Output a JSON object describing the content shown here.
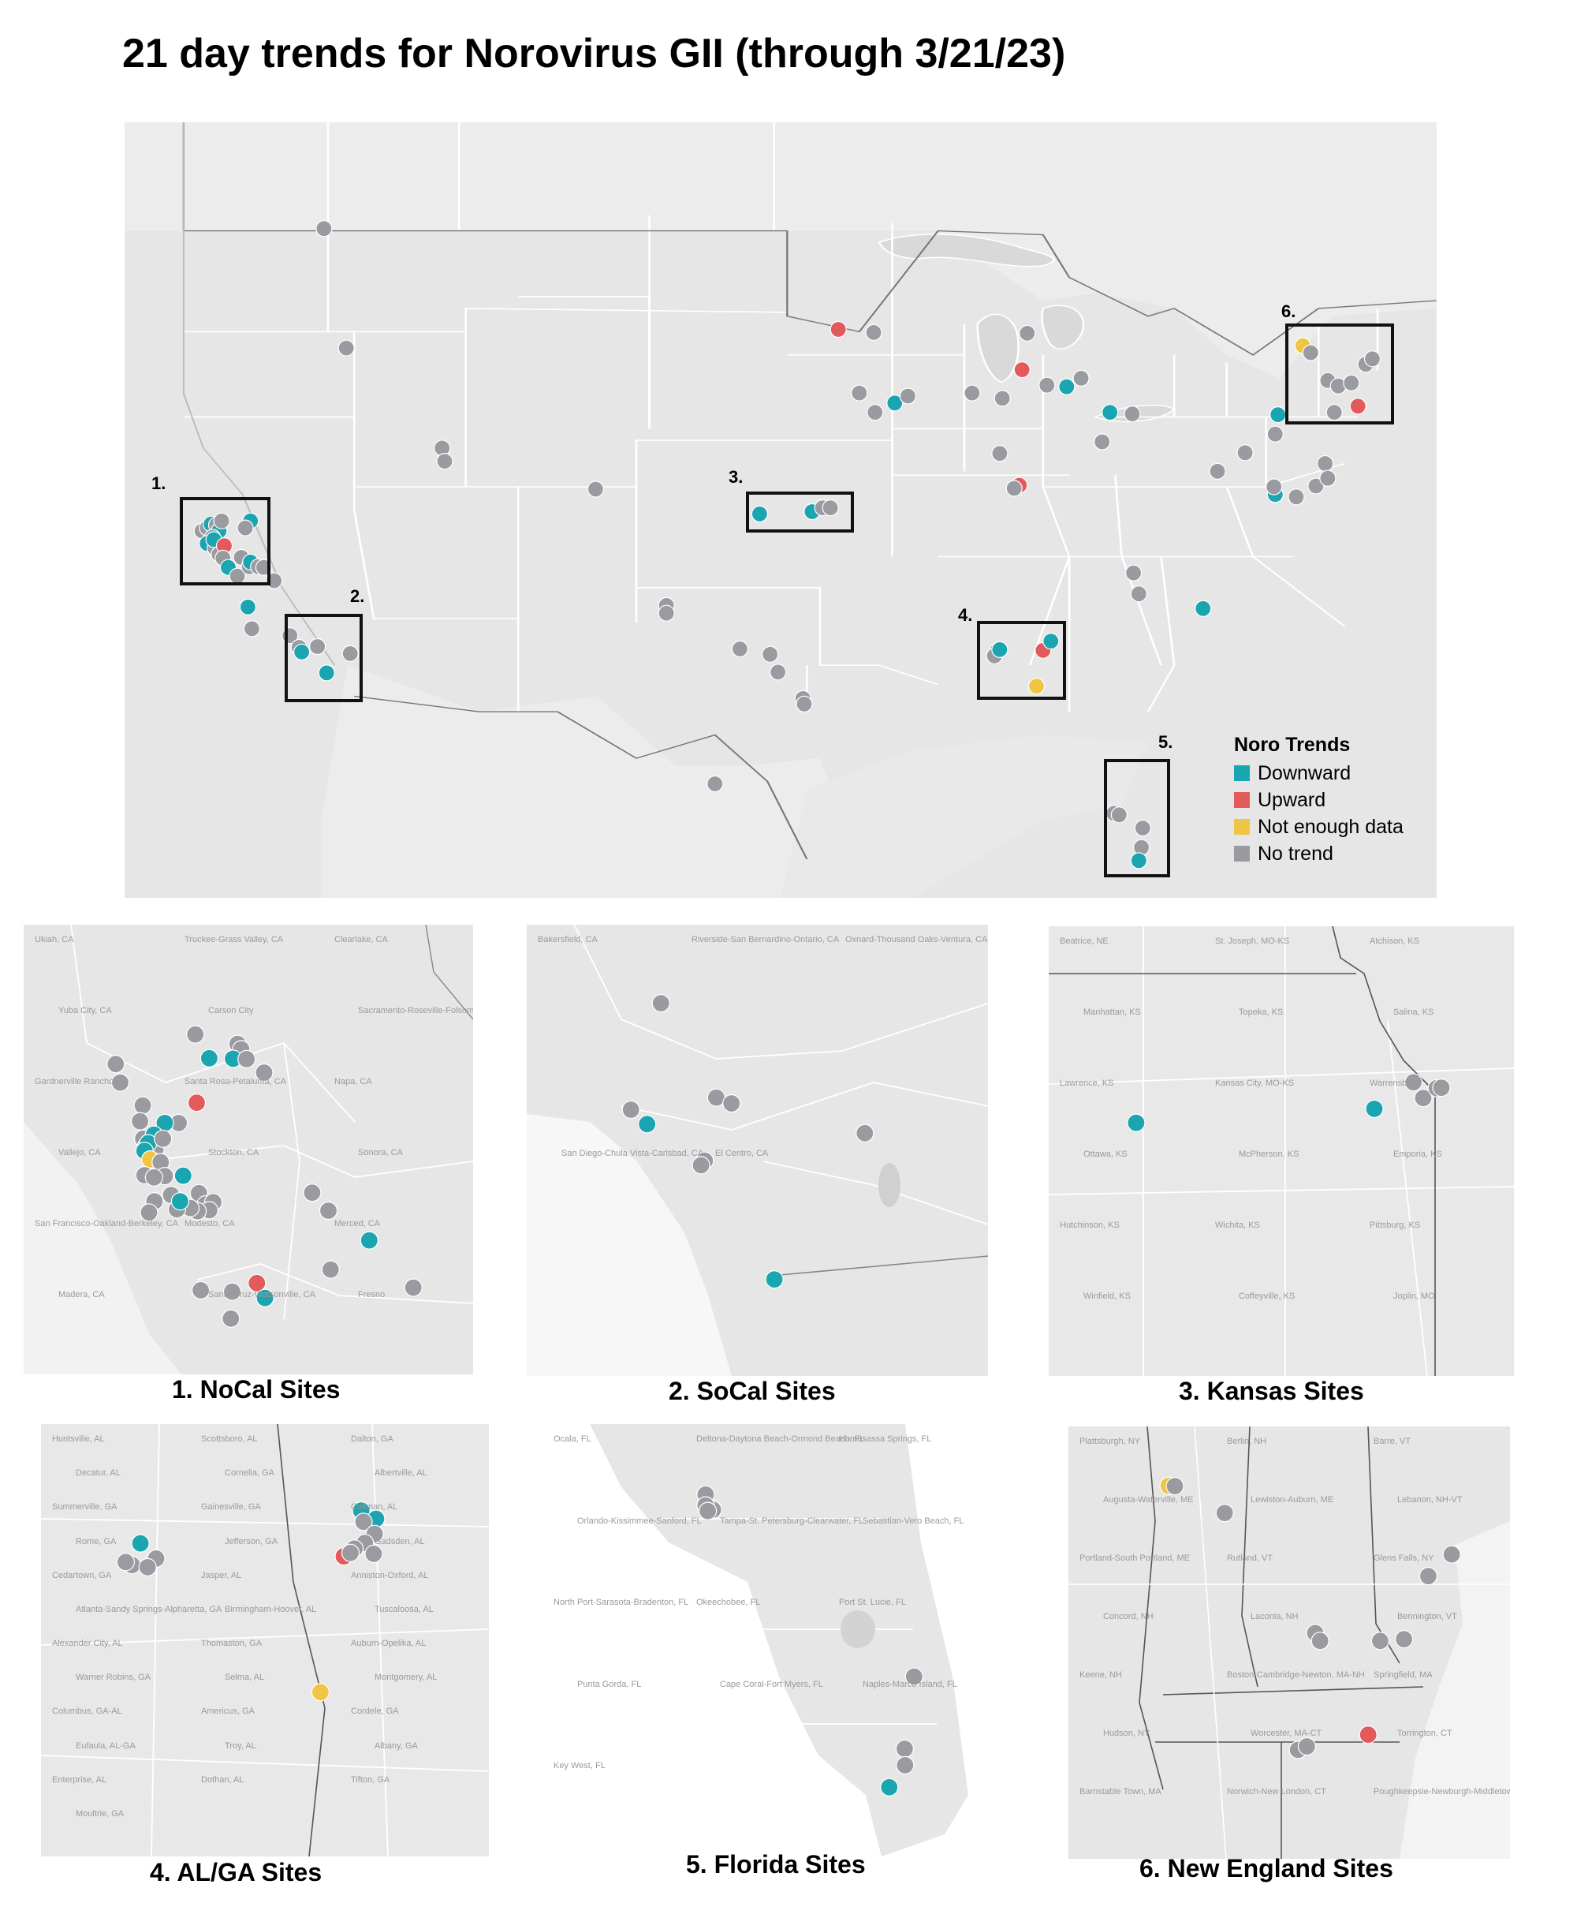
{
  "title": "21 day trends for Norovirus GII (through 3/21/23)",
  "legend": {
    "title": "Noro Trends",
    "items": [
      {
        "label": "Downward",
        "color": "#1aa5b0"
      },
      {
        "label": "Upward",
        "color": "#e35a5d"
      },
      {
        "label": "Not enough data",
        "color": "#f0c445"
      },
      {
        "label": "No trend",
        "color": "#9a9ba1"
      }
    ]
  },
  "box_labels": [
    "1.",
    "2.",
    "3.",
    "4.",
    "5.",
    "6."
  ],
  "captions": {
    "p1": "1. NoCal Sites",
    "p2": "2. SoCal Sites",
    "p3": "3. Kansas Sites",
    "p4": "4. AL/GA Sites",
    "p5": "5. Florida Sites",
    "p6": "6. New England Sites"
  },
  "place_labels": {
    "p1": [
      "Ukiah, CA",
      "Truckee-Grass Valley, CA",
      "Clearlake, CA",
      "Yuba City, CA",
      "Carson City",
      "Sacramento-Roseville-Folsom, CA",
      "Gardnerville Ranchos",
      "Santa Rosa-Petaluma, CA",
      "Napa, CA",
      "Vallejo, CA",
      "Stockton, CA",
      "Sonora, CA",
      "San Francisco-Oakland-Berkeley, CA",
      "Modesto, CA",
      "Merced, CA",
      "Madera, CA",
      "Santa Cruz-Watsonville, CA",
      "Fresno"
    ],
    "p2": [
      "Bakersfield, CA",
      "Riverside-San Bernardino-Ontario, CA",
      "Oxnard-Thousand Oaks-Ventura, CA",
      "San Diego-Chula Vista-Carlsbad, CA",
      "El Centro, CA"
    ],
    "p3": [
      "Beatrice, NE",
      "St. Joseph, MO-KS",
      "Atchison, KS",
      "Manhattan, KS",
      "Topeka, KS",
      "Salina, KS",
      "Lawrence, KS",
      "Kansas City, MO-KS",
      "Warrensburg",
      "Ottawa, KS",
      "McPherson, KS",
      "Emporia, KS",
      "Hutchinson, KS",
      "Wichita, KS",
      "Pittsburg, KS",
      "Winfield, KS",
      "Coffeyville, KS",
      "Joplin, MO"
    ],
    "p4": [
      "Huntsville, AL",
      "Scottsboro, AL",
      "Dalton, GA",
      "Decatur, AL",
      "Cornelia, GA",
      "Albertville, AL",
      "Summerville, GA",
      "Gainesville, GA",
      "Cullman, AL",
      "Rome, GA",
      "Jefferson, GA",
      "Gadsden, AL",
      "Cedartown, GA",
      "Jasper, AL",
      "Anniston-Oxford, AL",
      "Atlanta-Sandy Springs-Alpharetta, GA",
      "Birmingham-Hoover, AL",
      "Tuscaloosa, AL",
      "Alexander City, AL",
      "Thomaston, GA",
      "Auburn-Opelika, AL",
      "Warner Robins, GA",
      "Selma, AL",
      "Montgomery, AL",
      "Columbus, GA-AL",
      "Americus, GA",
      "Cordele, GA",
      "Eufaula, AL-GA",
      "Troy, AL",
      "Albany, GA",
      "Enterprise, AL",
      "Dothan, AL",
      "Tifton, GA",
      "Moultrie, GA"
    ],
    "p5": [
      "Ocala, FL",
      "Deltona-Daytona Beach-Ormond Beach, FL",
      "Homosassa Springs, FL",
      "Orlando-Kissimmee-Sanford, FL",
      "Tampa-St. Petersburg-Clearwater, FL",
      "Sebastian-Vero Beach, FL",
      "North Port-Sarasota-Bradenton, FL",
      "Okeechobee, FL",
      "Port St. Lucie, FL",
      "Punta Gorda, FL",
      "Cape Coral-Fort Myers, FL",
      "Naples-Marco Island, FL",
      "Key West, FL"
    ],
    "p6": [
      "Plattsburgh, NY",
      "Berlin, NH",
      "Barre, VT",
      "Augusta-Waterville, ME",
      "Lewiston-Auburn, ME",
      "Lebanon, NH-VT",
      "Portland-South Portland, ME",
      "Rutland, VT",
      "Glens Falls, NY",
      "Concord, NH",
      "Laconia, NH",
      "Bennington, VT",
      "Keene, NH",
      "Boston-Cambridge-Newton, MA-NH",
      "Springfield, MA",
      "Hudson, NY",
      "Worcester, MA-CT",
      "Torrington, CT",
      "Barnstable Town, MA",
      "Norwich-New London, CT",
      "Poughkeepsie-Newburgh-Middletown, NY"
    ]
  },
  "sites": {
    "main": [
      [
        "n",
        0.152,
        0.137
      ],
      [
        "n",
        0.169,
        0.291
      ],
      [
        "d",
        0.587,
        0.362
      ],
      [
        "r",
        0.544,
        0.267
      ],
      [
        "n",
        0.571,
        0.271
      ],
      [
        "n",
        0.56,
        0.349
      ],
      [
        "n",
        0.572,
        0.374
      ],
      [
        "n",
        0.597,
        0.353
      ],
      [
        "n",
        0.646,
        0.349
      ],
      [
        "n",
        0.669,
        0.356
      ],
      [
        "n",
        0.688,
        0.272
      ],
      [
        "r",
        0.684,
        0.319
      ],
      [
        "n",
        0.703,
        0.339
      ],
      [
        "d",
        0.718,
        0.341
      ],
      [
        "n",
        0.729,
        0.33
      ],
      [
        "d",
        0.751,
        0.374
      ],
      [
        "n",
        0.768,
        0.376
      ],
      [
        "n",
        0.745,
        0.412
      ],
      [
        "n",
        0.667,
        0.427
      ],
      [
        "r",
        0.682,
        0.468
      ],
      [
        "n",
        0.678,
        0.472
      ],
      [
        "n",
        0.833,
        0.45
      ],
      [
        "n",
        0.854,
        0.426
      ],
      [
        "n",
        0.877,
        0.402
      ],
      [
        "d",
        0.877,
        0.48
      ],
      [
        "n",
        0.876,
        0.47
      ],
      [
        "n",
        0.893,
        0.483
      ],
      [
        "n",
        0.908,
        0.469
      ],
      [
        "n",
        0.915,
        0.44
      ],
      [
        "n",
        0.917,
        0.459
      ],
      [
        "d",
        0.879,
        0.377
      ],
      [
        "d",
        0.822,
        0.627
      ],
      [
        "n",
        0.769,
        0.581
      ],
      [
        "n",
        0.773,
        0.608
      ],
      [
        "y",
        0.898,
        0.288
      ],
      [
        "n",
        0.904,
        0.297
      ],
      [
        "n",
        0.917,
        0.333
      ],
      [
        "n",
        0.925,
        0.34
      ],
      [
        "n",
        0.935,
        0.336
      ],
      [
        "n",
        0.946,
        0.312
      ],
      [
        "n",
        0.951,
        0.305
      ],
      [
        "n",
        0.922,
        0.374
      ],
      [
        "r",
        0.94,
        0.366
      ],
      [
        "n",
        0.242,
        0.42
      ],
      [
        "n",
        0.244,
        0.437
      ],
      [
        "n",
        0.359,
        0.473
      ],
      [
        "d",
        0.484,
        0.505
      ],
      [
        "d",
        0.524,
        0.502
      ],
      [
        "n",
        0.532,
        0.497
      ],
      [
        "n",
        0.538,
        0.497
      ],
      [
        "n",
        0.413,
        0.623
      ],
      [
        "n",
        0.413,
        0.633
      ],
      [
        "n",
        0.469,
        0.679
      ],
      [
        "n",
        0.492,
        0.686
      ],
      [
        "n",
        0.498,
        0.709
      ],
      [
        "n",
        0.517,
        0.743
      ],
      [
        "n",
        0.518,
        0.75
      ],
      [
        "n",
        0.45,
        0.853
      ],
      [
        "n",
        0.665,
        0.682
      ],
      [
        "n",
        0.663,
        0.688
      ],
      [
        "d",
        0.667,
        0.68
      ],
      [
        "r",
        0.7,
        0.681
      ],
      [
        "d",
        0.706,
        0.669
      ],
      [
        "y",
        0.695,
        0.727
      ],
      [
        "n",
        0.754,
        0.891
      ],
      [
        "n",
        0.758,
        0.893
      ],
      [
        "n",
        0.776,
        0.91
      ],
      [
        "n",
        0.775,
        0.935
      ],
      [
        "d",
        0.773,
        0.952
      ],
      [
        "d",
        0.094,
        0.625
      ],
      [
        "n",
        0.097,
        0.653
      ],
      [
        "n",
        0.126,
        0.662
      ],
      [
        "n",
        0.133,
        0.677
      ],
      [
        "d",
        0.135,
        0.683
      ],
      [
        "n",
        0.147,
        0.676
      ],
      [
        "n",
        0.172,
        0.685
      ],
      [
        "d",
        0.154,
        0.71
      ],
      [
        "n",
        0.059,
        0.527
      ],
      [
        "n",
        0.063,
        0.523
      ],
      [
        "d",
        0.066,
        0.518
      ],
      [
        "n",
        0.07,
        0.519
      ],
      [
        "d",
        0.072,
        0.527
      ],
      [
        "n",
        0.067,
        0.535
      ],
      [
        "d",
        0.063,
        0.543
      ],
      [
        "n",
        0.069,
        0.549
      ],
      [
        "d",
        0.068,
        0.538
      ],
      [
        "n",
        0.072,
        0.557
      ],
      [
        "r",
        0.076,
        0.546
      ],
      [
        "n",
        0.075,
        0.562
      ],
      [
        "d",
        0.079,
        0.574
      ],
      [
        "n",
        0.086,
        0.585
      ],
      [
        "n",
        0.089,
        0.561
      ],
      [
        "n",
        0.095,
        0.573
      ],
      [
        "d",
        0.096,
        0.567
      ],
      [
        "n",
        0.102,
        0.573
      ],
      [
        "n",
        0.106,
        0.574
      ],
      [
        "n",
        0.114,
        0.591
      ],
      [
        "d",
        0.096,
        0.514
      ],
      [
        "n",
        0.092,
        0.523
      ],
      [
        "n",
        0.074,
        0.514
      ]
    ],
    "p1": [
      [
        "n",
        0.382,
        0.244
      ],
      [
        "d",
        0.413,
        0.297
      ],
      [
        "n",
        0.476,
        0.265
      ],
      [
        "n",
        0.484,
        0.277
      ],
      [
        "d",
        0.466,
        0.298
      ],
      [
        "n",
        0.496,
        0.299
      ],
      [
        "n",
        0.535,
        0.329
      ],
      [
        "n",
        0.205,
        0.31
      ],
      [
        "n",
        0.215,
        0.351
      ],
      [
        "r",
        0.385,
        0.396
      ],
      [
        "n",
        0.345,
        0.441
      ],
      [
        "d",
        0.314,
        0.441
      ],
      [
        "n",
        0.265,
        0.402
      ],
      [
        "n",
        0.259,
        0.437
      ],
      [
        "n",
        0.266,
        0.476
      ],
      [
        "n",
        0.272,
        0.494
      ],
      [
        "d",
        0.29,
        0.467
      ],
      [
        "n",
        0.293,
        0.5
      ],
      [
        "d",
        0.277,
        0.486
      ],
      [
        "d",
        0.269,
        0.503
      ],
      [
        "y",
        0.282,
        0.522
      ],
      [
        "n",
        0.31,
        0.476
      ],
      [
        "n",
        0.305,
        0.528
      ],
      [
        "n",
        0.314,
        0.559
      ],
      [
        "n",
        0.269,
        0.557
      ],
      [
        "n",
        0.29,
        0.562
      ],
      [
        "d",
        0.355,
        0.558
      ],
      [
        "n",
        0.328,
        0.601
      ],
      [
        "n",
        0.39,
        0.597
      ],
      [
        "n",
        0.405,
        0.622
      ],
      [
        "n",
        0.422,
        0.617
      ],
      [
        "n",
        0.413,
        0.635
      ],
      [
        "n",
        0.387,
        0.637
      ],
      [
        "n",
        0.371,
        0.63
      ],
      [
        "n",
        0.341,
        0.633
      ],
      [
        "d",
        0.348,
        0.615
      ],
      [
        "n",
        0.291,
        0.615
      ],
      [
        "n",
        0.279,
        0.64
      ],
      [
        "n",
        0.642,
        0.596
      ],
      [
        "n",
        0.678,
        0.636
      ],
      [
        "d",
        0.769,
        0.702
      ],
      [
        "n",
        0.683,
        0.767
      ],
      [
        "n",
        0.867,
        0.807
      ],
      [
        "r",
        0.519,
        0.797
      ],
      [
        "d",
        0.537,
        0.83
      ],
      [
        "n",
        0.464,
        0.816
      ],
      [
        "n",
        0.394,
        0.813
      ],
      [
        "n",
        0.461,
        0.876
      ]
    ],
    "p2": [
      [
        "n",
        0.291,
        0.174
      ],
      [
        "n",
        0.226,
        0.41
      ],
      [
        "d",
        0.261,
        0.442
      ],
      [
        "n",
        0.411,
        0.383
      ],
      [
        "n",
        0.444,
        0.396
      ],
      [
        "n",
        0.733,
        0.462
      ],
      [
        "n",
        0.386,
        0.523
      ],
      [
        "n",
        0.378,
        0.533
      ],
      [
        "d",
        0.537,
        0.786
      ]
    ],
    "p3": [
      [
        "d",
        0.188,
        0.437
      ],
      [
        "d",
        0.7,
        0.406
      ],
      [
        "n",
        0.784,
        0.347
      ],
      [
        "n",
        0.805,
        0.382
      ],
      [
        "n",
        0.834,
        0.36
      ],
      [
        "n",
        0.844,
        0.359
      ]
    ],
    "p4": [
      [
        "d",
        0.715,
        0.2
      ],
      [
        "d",
        0.748,
        0.219
      ],
      [
        "n",
        0.72,
        0.226
      ],
      [
        "n",
        0.745,
        0.254
      ],
      [
        "n",
        0.723,
        0.275
      ],
      [
        "n",
        0.7,
        0.288
      ],
      [
        "n",
        0.743,
        0.3
      ],
      [
        "r",
        0.676,
        0.306
      ],
      [
        "n",
        0.691,
        0.298
      ],
      [
        "d",
        0.222,
        0.276
      ],
      [
        "n",
        0.257,
        0.311
      ],
      [
        "n",
        0.203,
        0.326
      ],
      [
        "n",
        0.189,
        0.319
      ],
      [
        "n",
        0.238,
        0.331
      ],
      [
        "y",
        0.624,
        0.62
      ]
    ],
    "p5": [
      [
        "n",
        0.381,
        0.163
      ],
      [
        "n",
        0.398,
        0.198
      ],
      [
        "n",
        0.381,
        0.188
      ],
      [
        "n",
        0.386,
        0.201
      ],
      [
        "n",
        0.868,
        0.584
      ],
      [
        "n",
        0.846,
        0.751
      ],
      [
        "n",
        0.847,
        0.789
      ],
      [
        "d",
        0.81,
        0.84
      ]
    ],
    "p6": [
      [
        "y",
        0.227,
        0.137
      ],
      [
        "n",
        0.241,
        0.138
      ],
      [
        "n",
        0.354,
        0.2
      ],
      [
        "n",
        0.868,
        0.296
      ],
      [
        "n",
        0.815,
        0.346
      ],
      [
        "n",
        0.559,
        0.478
      ],
      [
        "n",
        0.57,
        0.496
      ],
      [
        "n",
        0.706,
        0.496
      ],
      [
        "n",
        0.76,
        0.492
      ],
      [
        "n",
        0.52,
        0.748
      ],
      [
        "n",
        0.54,
        0.74
      ],
      [
        "r",
        0.679,
        0.713
      ]
    ]
  }
}
